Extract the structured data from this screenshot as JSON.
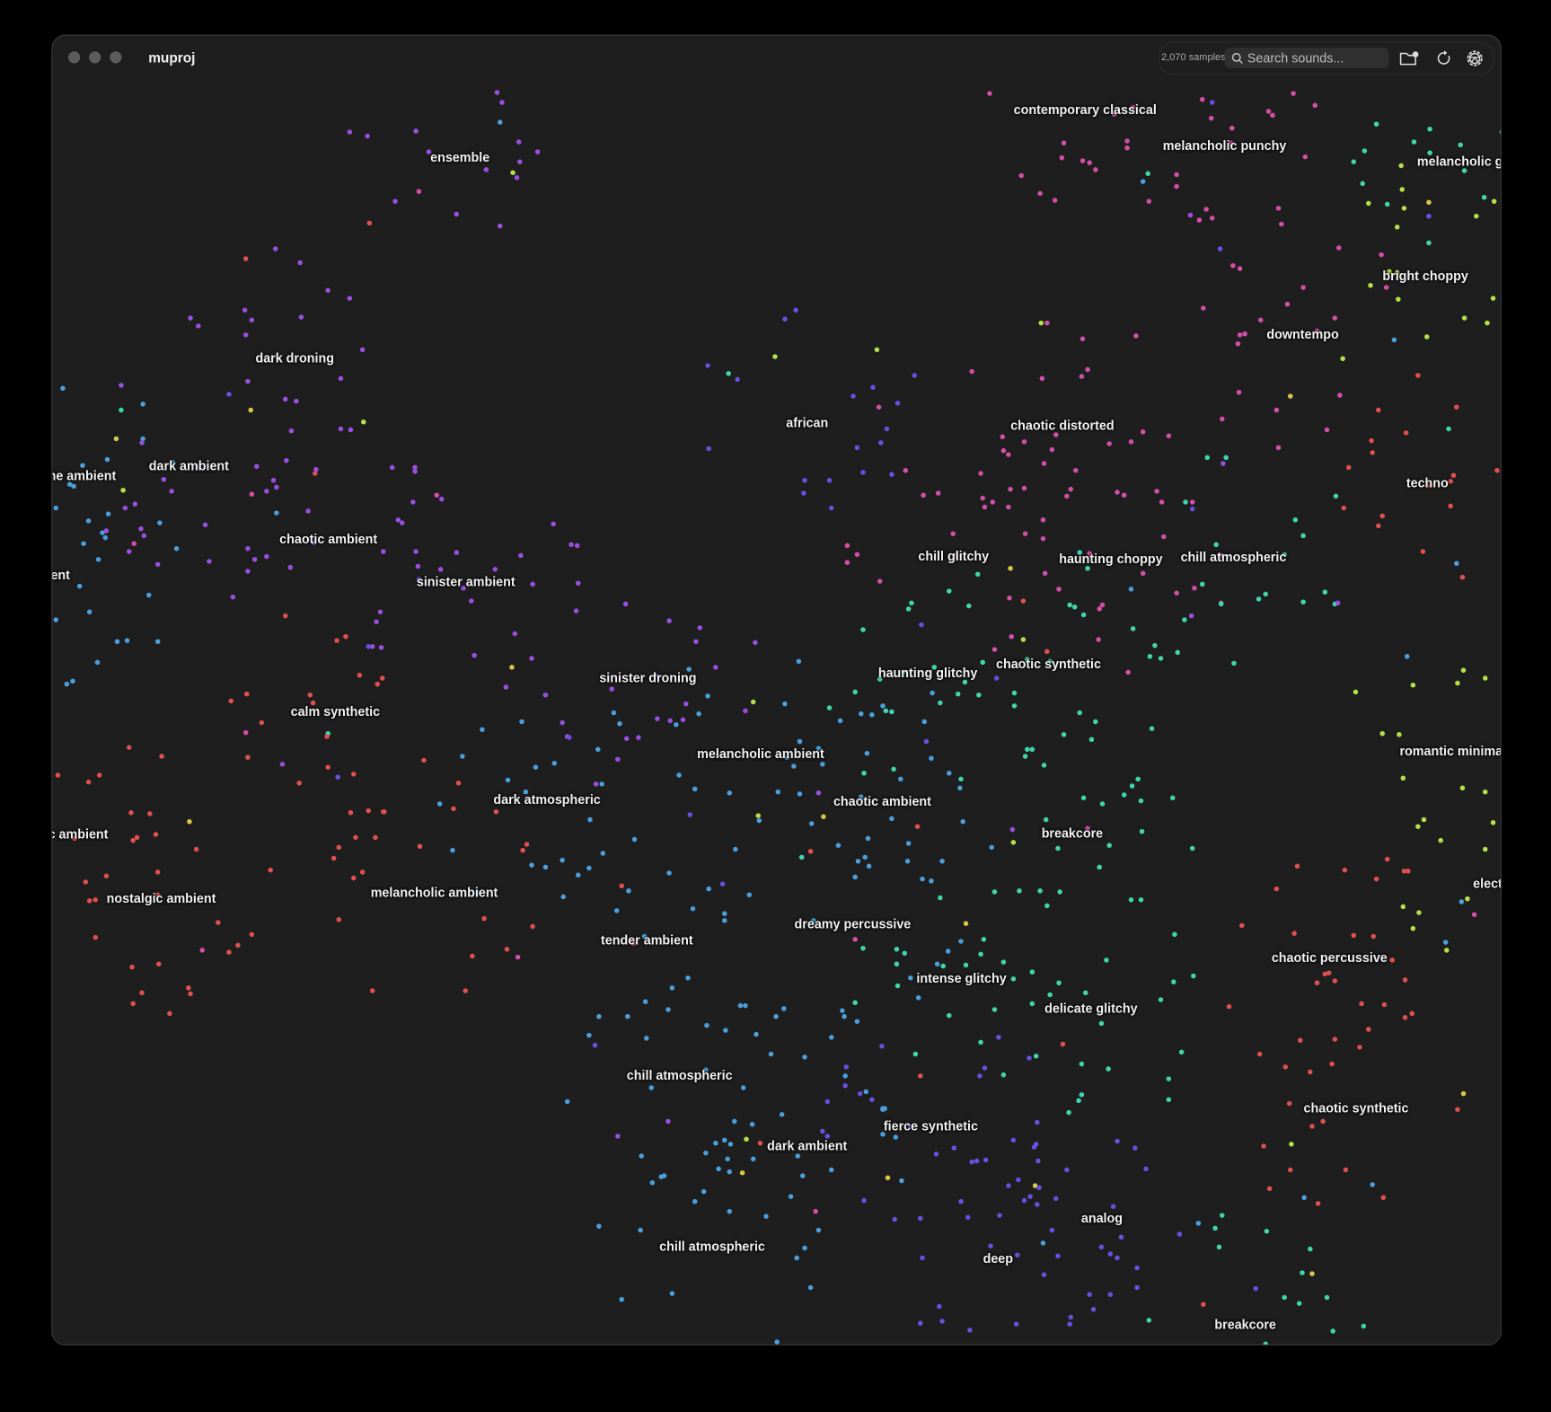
{
  "window": {
    "title": "muproj"
  },
  "toolbar": {
    "sample_count": "2,070 samples",
    "search_placeholder": "Search sounds...",
    "icons": [
      "search-icon",
      "folder-add-icon",
      "refresh-icon",
      "settings-icon"
    ]
  },
  "colors": {
    "background": "#1e1e1e",
    "purple": "#9b4fe0",
    "blue": "#4a9fdc",
    "red": "#e0504f",
    "teal": "#3fd6ae",
    "pink": "#d44fa8",
    "lime": "#b5e04a",
    "violet": "#6a4fe0",
    "yellow": "#d8c84a"
  },
  "clusters": [
    {
      "label": "contemporary classical",
      "color": "pink"
    },
    {
      "label": "melancholic punchy",
      "color": "pink"
    },
    {
      "label": "melancholic g",
      "color": "teal"
    },
    {
      "label": "ensemble",
      "color": "purple"
    },
    {
      "label": "dark droning",
      "color": "purple"
    },
    {
      "label": "bright choppy",
      "color": "lime"
    },
    {
      "label": "downtempo",
      "color": "pink"
    },
    {
      "label": "african",
      "color": "violet"
    },
    {
      "label": "chaotic distorted",
      "color": "pink"
    },
    {
      "label": "he ambient",
      "color": "blue"
    },
    {
      "label": "dark ambient",
      "color": "purple"
    },
    {
      "label": "techno",
      "color": "red"
    },
    {
      "label": "chaotic ambient",
      "color": "purple"
    },
    {
      "label": "chill glitchy",
      "color": "pink"
    },
    {
      "label": "haunting choppy",
      "color": "pink"
    },
    {
      "label": "chill atmospheric",
      "color": "teal"
    },
    {
      "label": "ent",
      "color": "blue"
    },
    {
      "label": "sinister ambient",
      "color": "purple"
    },
    {
      "label": "sinister droning",
      "color": "purple"
    },
    {
      "label": "haunting glitchy",
      "color": "teal"
    },
    {
      "label": "chaotic synthetic",
      "color": "teal"
    },
    {
      "label": "calm synthetic",
      "color": "red"
    },
    {
      "label": "melancholic ambient",
      "color": "blue"
    },
    {
      "label": "romantic minima",
      "color": "lime"
    },
    {
      "label": "dark atmospheric",
      "color": "blue"
    },
    {
      "label": "chaotic ambient",
      "color": "blue"
    },
    {
      "label": "breakcore",
      "color": "teal"
    },
    {
      "label": "c ambient",
      "color": "red"
    },
    {
      "label": "nostalgic ambient",
      "color": "red"
    },
    {
      "label": "melancholic ambient",
      "color": "red"
    },
    {
      "label": "elect",
      "color": "lime"
    },
    {
      "label": "dreamy percussive",
      "color": "blue"
    },
    {
      "label": "tender ambient",
      "color": "blue"
    },
    {
      "label": "chaotic percussive",
      "color": "red"
    },
    {
      "label": "intense glitchy",
      "color": "teal"
    },
    {
      "label": "delicate glitchy",
      "color": "teal"
    },
    {
      "label": "chill atmospheric",
      "color": "blue"
    },
    {
      "label": "chaotic synthetic",
      "color": "red"
    },
    {
      "label": "fierce synthetic",
      "color": "violet"
    },
    {
      "label": "dark ambient",
      "color": "blue"
    },
    {
      "label": "analog",
      "color": "violet"
    },
    {
      "label": "chill atmospheric",
      "color": "blue"
    },
    {
      "label": "deep",
      "color": "violet"
    },
    {
      "label": "breakcore",
      "color": "teal"
    }
  ]
}
